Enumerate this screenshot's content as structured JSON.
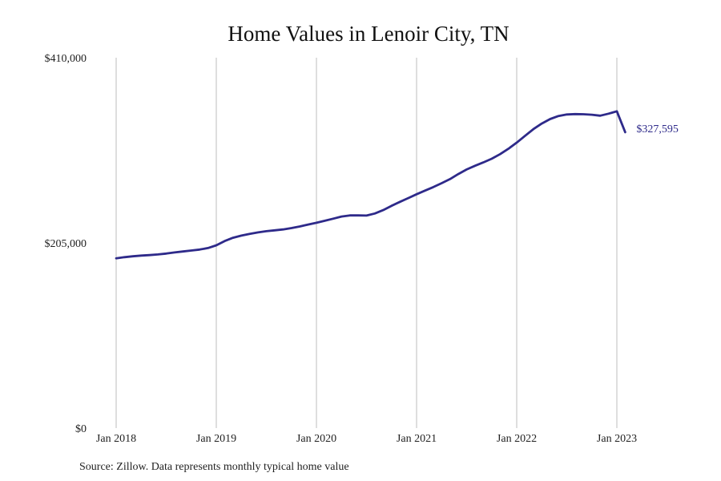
{
  "chart_data": {
    "type": "line",
    "title": "Home Values in Lenoir City, TN",
    "source": "Source: Zillow. Data represents monthly typical home value",
    "xlabel": "",
    "ylabel": "",
    "ylim": [
      0,
      410000
    ],
    "yticks": [
      {
        "value": 0,
        "label": "$0"
      },
      {
        "value": 205000,
        "label": "$205,000"
      },
      {
        "value": 410000,
        "label": "$410,000"
      }
    ],
    "xticks": [
      {
        "value": "2018-01",
        "label": "Jan 2018"
      },
      {
        "value": "2019-01",
        "label": "Jan 2019"
      },
      {
        "value": "2020-01",
        "label": "Jan 2020"
      },
      {
        "value": "2021-01",
        "label": "Jan 2021"
      },
      {
        "value": "2022-01",
        "label": "Jan 2022"
      },
      {
        "value": "2023-01",
        "label": "Jan 2023"
      }
    ],
    "grid": {
      "vertical": true,
      "horizontal": false
    },
    "series": [
      {
        "color": "#2e2a8a",
        "end_label": "$327,595",
        "x": [
          "2018-01",
          "2018-02",
          "2018-03",
          "2018-04",
          "2018-05",
          "2018-06",
          "2018-07",
          "2018-08",
          "2018-09",
          "2018-10",
          "2018-11",
          "2018-12",
          "2019-01",
          "2019-02",
          "2019-03",
          "2019-04",
          "2019-05",
          "2019-06",
          "2019-07",
          "2019-08",
          "2019-09",
          "2019-10",
          "2019-11",
          "2019-12",
          "2020-01",
          "2020-02",
          "2020-03",
          "2020-04",
          "2020-05",
          "2020-06",
          "2020-07",
          "2020-08",
          "2020-09",
          "2020-10",
          "2020-11",
          "2020-12",
          "2021-01",
          "2021-02",
          "2021-03",
          "2021-04",
          "2021-05",
          "2021-06",
          "2021-07",
          "2021-08",
          "2021-09",
          "2021-10",
          "2021-11",
          "2021-12",
          "2022-01",
          "2022-02",
          "2022-03",
          "2022-04",
          "2022-05",
          "2022-06",
          "2022-07",
          "2022-08",
          "2022-09",
          "2022-10",
          "2022-11",
          "2022-12",
          "2023-01",
          "2023-02"
        ],
        "values": [
          188000,
          189200,
          190200,
          191000,
          191500,
          192200,
          193200,
          194400,
          195500,
          196600,
          197600,
          199300,
          202300,
          207000,
          210700,
          213100,
          215000,
          216600,
          218000,
          218900,
          219900,
          221400,
          223200,
          225300,
          227300,
          229500,
          231800,
          234200,
          235400,
          235400,
          235300,
          237600,
          241300,
          246100,
          250400,
          254600,
          258900,
          262900,
          266800,
          271100,
          275600,
          281200,
          286300,
          290400,
          294100,
          298200,
          303200,
          309200,
          316000,
          323600,
          330900,
          337100,
          342100,
          345500,
          347200,
          347600,
          347400,
          346900,
          345800,
          348100,
          350700,
          327595
        ]
      }
    ]
  }
}
